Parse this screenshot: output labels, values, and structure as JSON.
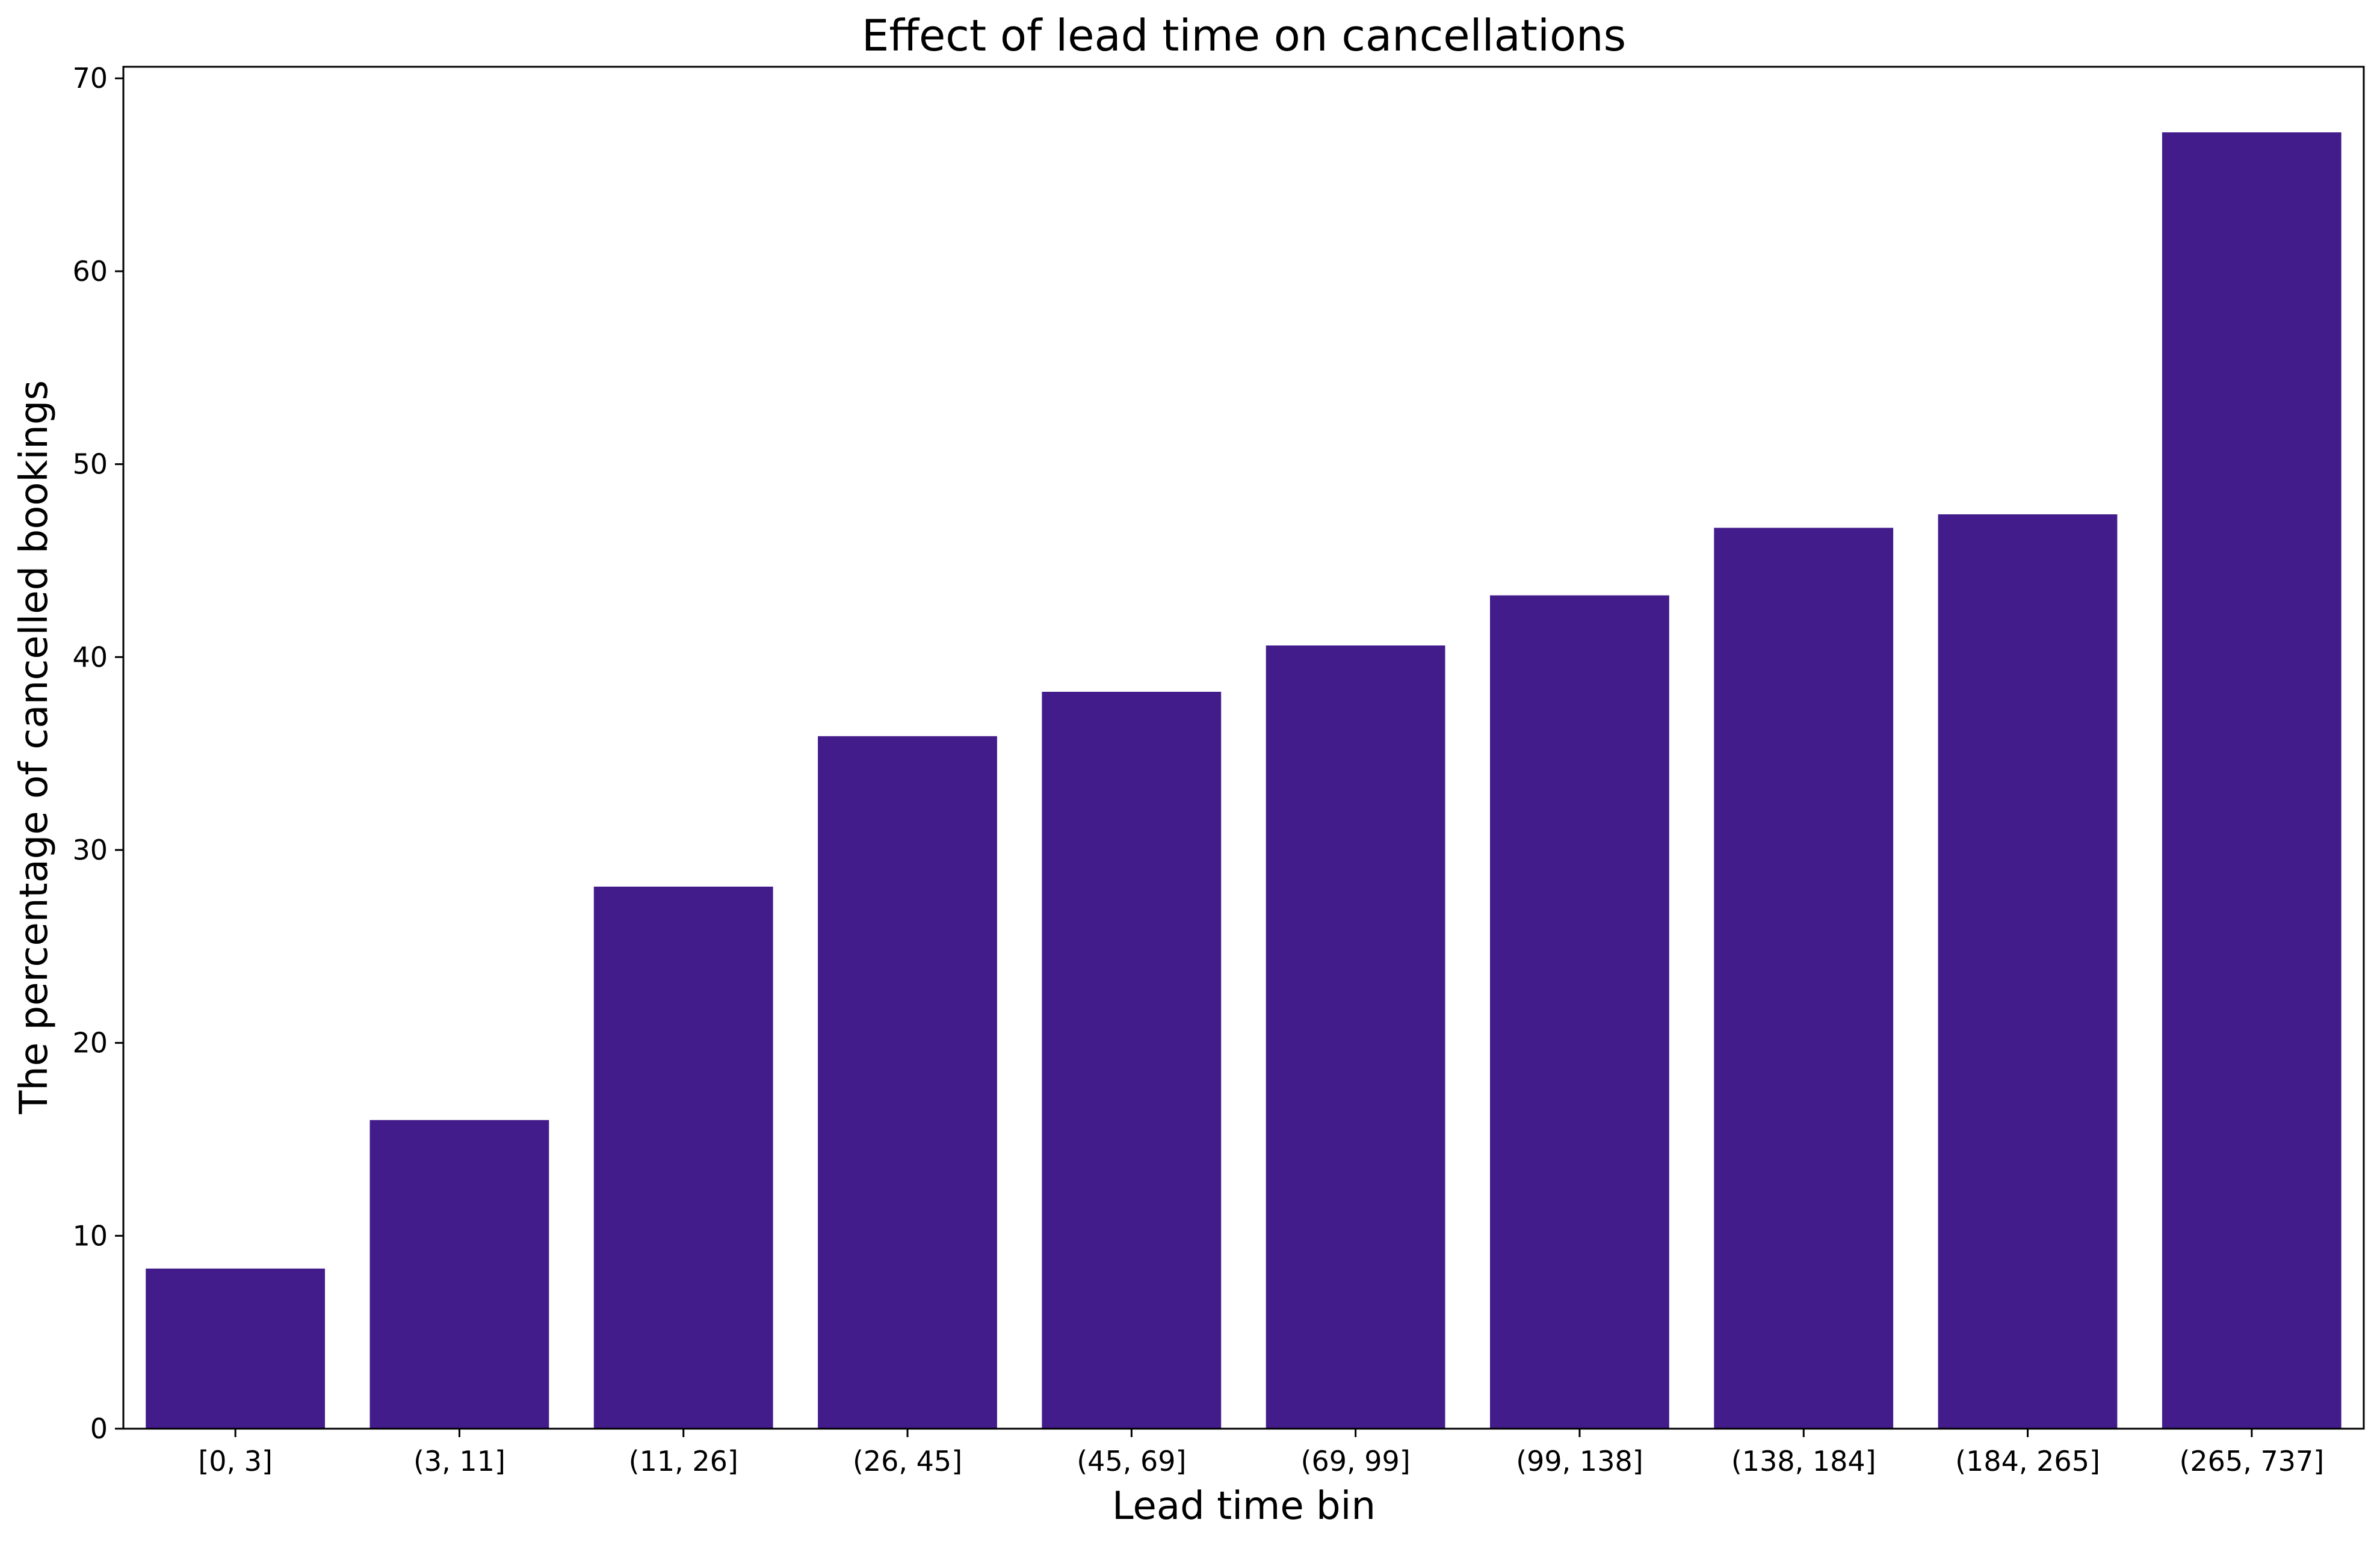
{
  "chart_data": {
    "type": "bar",
    "title": "Effect of lead time on cancellations",
    "xlabel": "Lead time bin",
    "ylabel": "The percentage of cancelled bookings",
    "categories": [
      "[0, 3]",
      "(3, 11]",
      "(11, 26]",
      "(26, 45]",
      "(45, 69]",
      "(69, 99]",
      "(99, 138]",
      "(138, 184]",
      "(184, 265]",
      "(265, 737]"
    ],
    "values": [
      8.3,
      16.0,
      28.1,
      35.9,
      38.2,
      40.6,
      43.2,
      46.7,
      47.4,
      67.2
    ],
    "yticks": [
      0,
      10,
      20,
      30,
      40,
      50,
      60,
      70
    ],
    "ylim": [
      0,
      70.6
    ],
    "grid": false,
    "legend": "none",
    "colors": {
      "bar": "#431c8c",
      "axis": "#000000"
    }
  }
}
